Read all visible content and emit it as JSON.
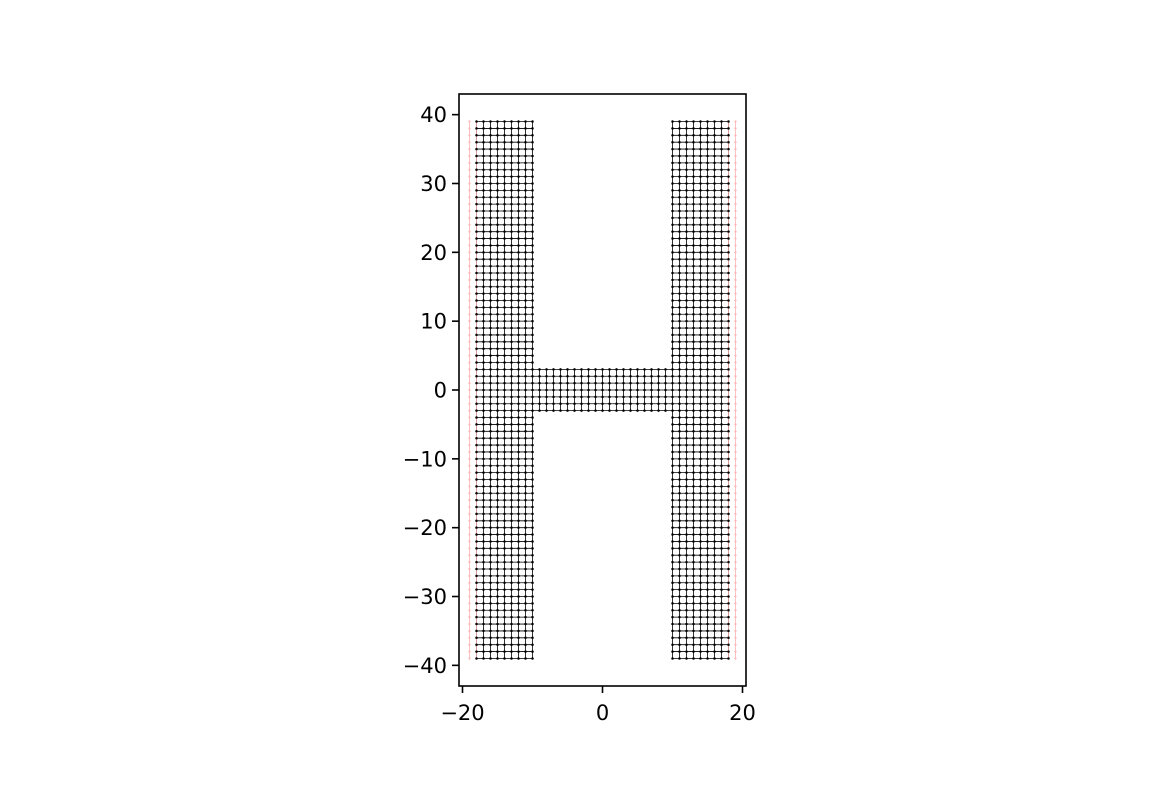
{
  "chart_data": {
    "type": "scatter",
    "title": "",
    "xlabel": "",
    "ylabel": "",
    "xlim": [
      -20.5,
      20.5
    ],
    "ylim": [
      -43,
      43
    ],
    "xticks": [
      -20,
      0,
      20
    ],
    "yticks": [
      -40,
      -30,
      -20,
      -10,
      0,
      10,
      20,
      30,
      40
    ],
    "xtick_labels": [
      "−20",
      "0",
      "20"
    ],
    "ytick_labels": [
      "−40",
      "−30",
      "−20",
      "−10",
      "0",
      "10",
      "20",
      "30",
      "40"
    ],
    "grid": false,
    "lattice_spacing": 1,
    "series": [
      {
        "role": "interior-sites",
        "color": "#000000",
        "y_range": [
          -39,
          39
        ],
        "x_ranges_full_height": [
          [
            -18,
            -10
          ],
          [
            10,
            18
          ]
        ],
        "crossbar": {
          "x_range": [
            -9,
            9
          ],
          "y_range": [
            -3,
            3
          ]
        },
        "bonds": true
      },
      {
        "role": "lead-sites-left",
        "color": "#ffb3b3",
        "x_values": [
          -19,
          -18
        ],
        "y_range": [
          -39,
          39
        ]
      },
      {
        "role": "lead-sites-right",
        "color": "#ffb3b3",
        "x_values": [
          18,
          19
        ],
        "y_range": [
          -39,
          39
        ]
      }
    ]
  }
}
